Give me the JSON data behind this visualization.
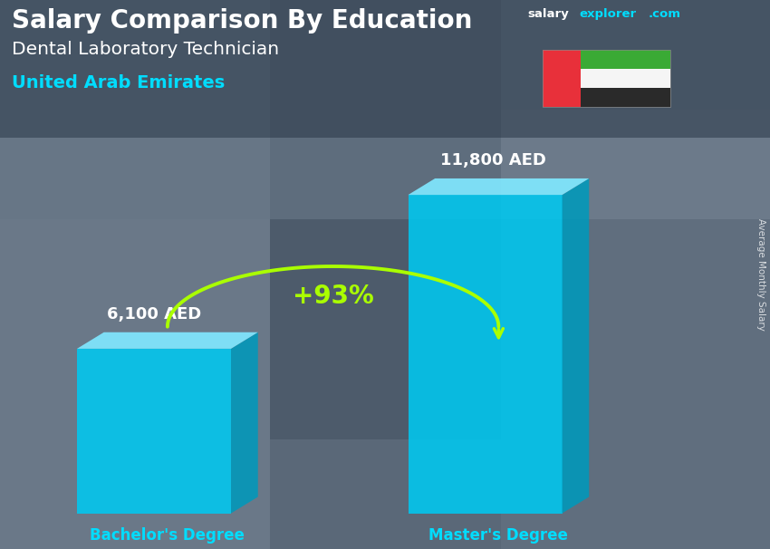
{
  "title_main": "Salary Comparison By Education",
  "subtitle_job": "Dental Laboratory Technician",
  "subtitle_country": "United Arab Emirates",
  "categories": [
    "Bachelor's Degree",
    "Master's Degree"
  ],
  "values": [
    6100,
    11800
  ],
  "value_labels": [
    "6,100 AED",
    "11,800 AED"
  ],
  "pct_change": "+93%",
  "bar_color_face": "#00C8F0",
  "bar_color_top": "#80E8FF",
  "bar_color_side": "#0099BB",
  "bg_color": "#4a5a6a",
  "text_color_white": "#ffffff",
  "text_color_cyan": "#00ddff",
  "text_color_green": "#aaff00",
  "ylabel_text": "Average Monthly Salary",
  "arrow_color": "#aaff00",
  "salary_color": "#ffffff",
  "explorer_color": "#00ddff",
  "com_color": "#00ddff",
  "figsize": [
    8.5,
    6.06
  ],
  "dpi": 100
}
